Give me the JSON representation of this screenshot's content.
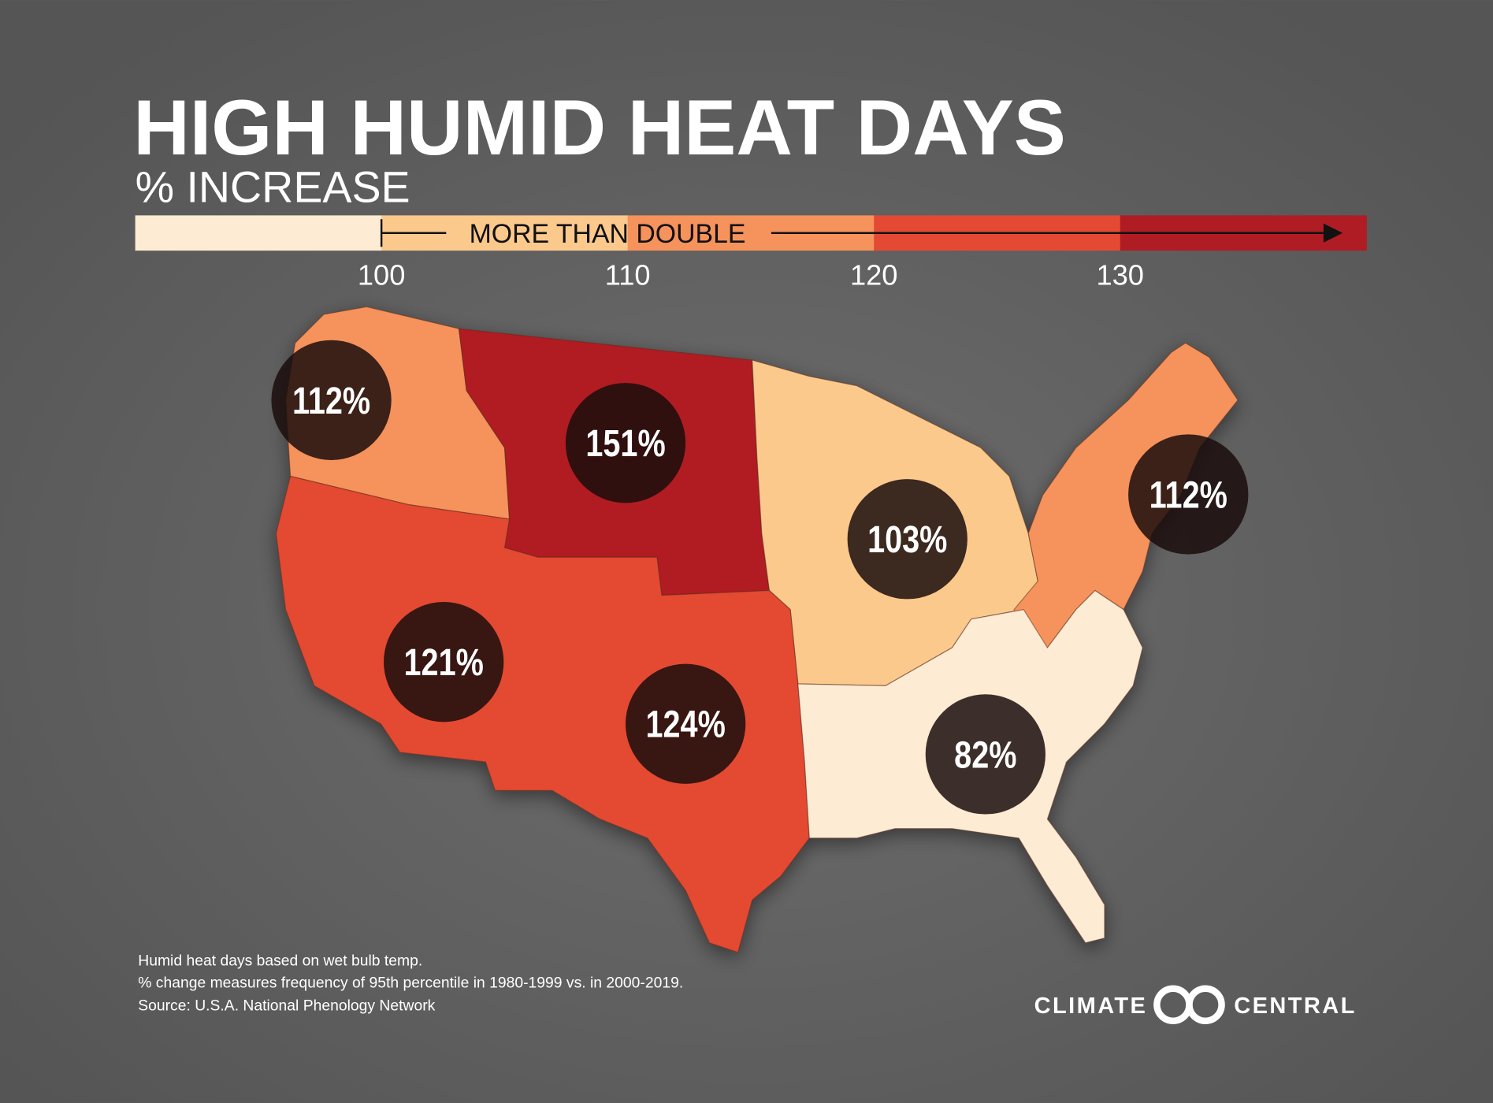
{
  "header": {
    "title": "HIGH HUMID HEAT DAYS",
    "subtitle": "% INCREASE"
  },
  "legend": {
    "range": [
      90,
      140
    ],
    "ticks": [
      100,
      110,
      120,
      130
    ],
    "colors": [
      "#fdebd3",
      "#fcc98c",
      "#f6925c",
      "#e44a33",
      "#b01c24"
    ],
    "annotation": "MORE THAN DOUBLE"
  },
  "regions": [
    {
      "label": "112%",
      "color": "#f6925c"
    },
    {
      "label": "151%",
      "color": "#b01c24"
    },
    {
      "label": "103%",
      "color": "#fcc98c"
    },
    {
      "label": "112%",
      "color": "#f6925c"
    },
    {
      "label": "121%",
      "color": "#e44a33"
    },
    {
      "label": "124%",
      "color": "#e44a33"
    },
    {
      "label": "82%",
      "color": "#fdebd3"
    }
  ],
  "notes": [
    "Humid heat days based on wet bulb temp.",
    "% change measures frequency of 95th percentile in 1980-1999 vs. in 2000-2019.",
    "Source: U.S.A. National Phenology Network"
  ],
  "logo": {
    "left": "CLIMATE",
    "right": "CENTRAL"
  }
}
